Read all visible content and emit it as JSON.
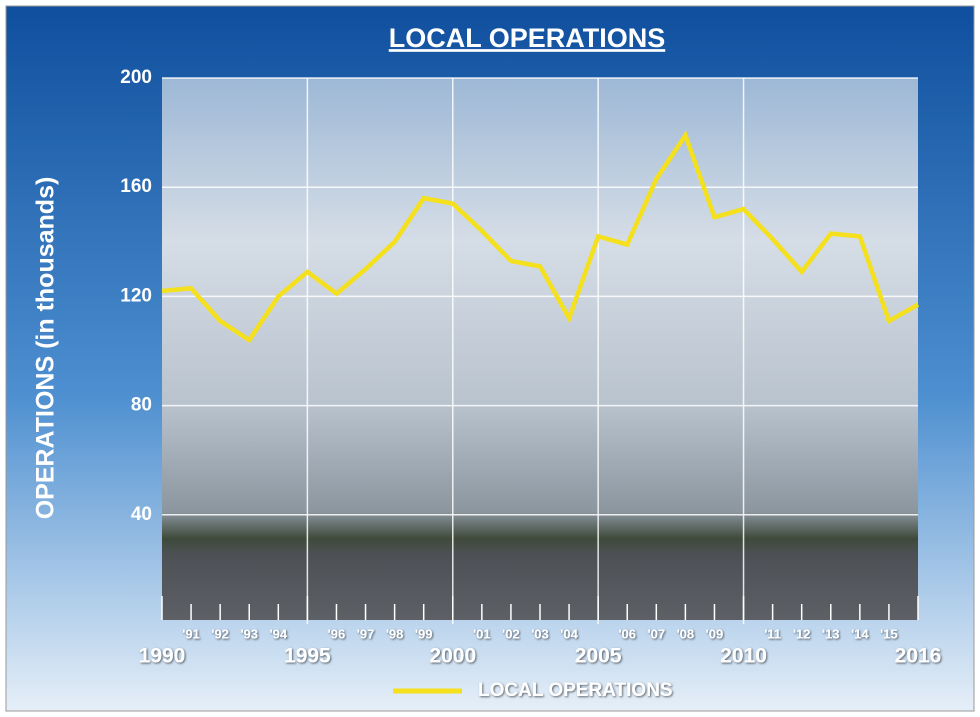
{
  "chart_data": {
    "type": "line",
    "title": "LOCAL OPERATIONS",
    "y_label": "OPERATIONS (in thousands)",
    "x": [
      1990,
      1991,
      1992,
      1993,
      1994,
      1995,
      1996,
      1997,
      1998,
      1999,
      2000,
      2001,
      2002,
      2003,
      2004,
      2005,
      2006,
      2007,
      2008,
      2009,
      2010,
      2011,
      2012,
      2013,
      2014,
      2015,
      2016
    ],
    "series": [
      {
        "name": "LOCAL OPERATIONS",
        "color": "#f4e01c",
        "values": [
          122,
          123,
          111,
          104,
          120,
          129,
          121,
          130,
          140,
          156,
          154,
          144,
          133,
          131,
          112,
          142,
          139,
          163,
          179,
          149,
          152,
          141,
          129,
          143,
          142,
          111,
          117
        ]
      }
    ],
    "xlim": [
      1990,
      2016
    ],
    "xticks": [
      1990,
      {
        "value": 1991,
        "label": "'91"
      },
      {
        "value": 1992,
        "label": "'92"
      },
      {
        "value": 1993,
        "label": "'93"
      },
      {
        "value": 1994,
        "label": "'94"
      },
      1995,
      {
        "value": 1996,
        "label": "'96"
      },
      {
        "value": 1997,
        "label": "'97"
      },
      {
        "value": 1998,
        "label": "'98"
      },
      {
        "value": 1999,
        "label": "'99"
      },
      2000,
      {
        "value": 2001,
        "label": "'01"
      },
      {
        "value": 2002,
        "label": "'02"
      },
      {
        "value": 2003,
        "label": "'03"
      },
      {
        "value": 2004,
        "label": "'04"
      },
      2005,
      {
        "value": 2006,
        "label": "'06"
      },
      {
        "value": 2007,
        "label": "'07"
      },
      {
        "value": 2008,
        "label": "'08"
      },
      {
        "value": 2009,
        "label": "'09"
      },
      2010,
      {
        "value": 2011,
        "label": "'11"
      },
      {
        "value": 2012,
        "label": "'12"
      },
      {
        "value": 2013,
        "label": "'13"
      },
      {
        "value": 2014,
        "label": "'14"
      },
      {
        "value": 2015,
        "label": "'15"
      },
      2016
    ],
    "ylim": [
      0,
      200
    ],
    "yticks": [
      40,
      80,
      120,
      160,
      200
    ],
    "grid": true
  }
}
